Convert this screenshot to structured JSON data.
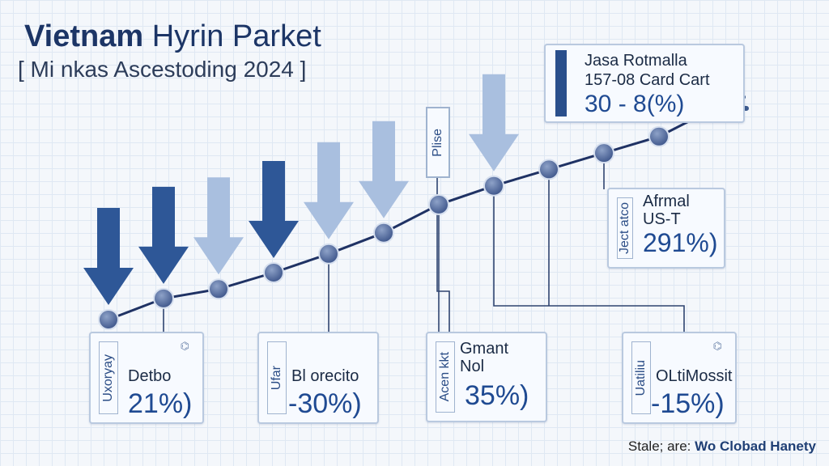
{
  "title": {
    "bold": "Vietnam",
    "rest": " Hyrin Parket"
  },
  "subtitle": "[ Mi nkas Ascestoding 2024 ]",
  "phase_label": "Plise",
  "top_card": {
    "side": "",
    "line1": "Jasa Rotmalla",
    "line2": "157-08 Card Cart",
    "value": "30 - 8(%)"
  },
  "cards": [
    {
      "side": "Uxoryay",
      "name": "Detbo",
      "value": "21%)"
    },
    {
      "side": "Ufar",
      "name": "Bl orecito",
      "value": "-30%)"
    },
    {
      "side": "Acen kkt",
      "name": "Gmant\nNol",
      "value": "35%)"
    },
    {
      "side": "Uatiliu",
      "name": "OLtiMossit",
      "value": "-15%)"
    },
    {
      "side": "Ject atco",
      "name": "Afrmal\nUS-T",
      "value": "291%)"
    }
  ],
  "source": {
    "prefix": "Stale; are: ",
    "name": "Wo Clobad Hanety"
  },
  "colors": {
    "dark_arrow": "#2e5797",
    "light_arrow": "#a9bfdf",
    "line": "#1f3264",
    "node": "#53689a",
    "card_border": "#b9c9df"
  },
  "chart_data": {
    "type": "line",
    "x": [
      1,
      2,
      3,
      4,
      5,
      6,
      7,
      8,
      9,
      10,
      11,
      12
    ],
    "y": [
      1.0,
      1.9,
      2.3,
      3.0,
      3.8,
      4.7,
      5.9,
      6.7,
      7.4,
      8.1,
      8.8,
      10.0
    ],
    "arrows": [
      {
        "x": 1,
        "shade": "dark"
      },
      {
        "x": 2,
        "shade": "dark"
      },
      {
        "x": 3,
        "shade": "light"
      },
      {
        "x": 4,
        "shade": "dark"
      },
      {
        "x": 5,
        "shade": "light"
      },
      {
        "x": 6,
        "shade": "light"
      },
      {
        "x": 8,
        "shade": "light"
      }
    ],
    "grid": true
  }
}
